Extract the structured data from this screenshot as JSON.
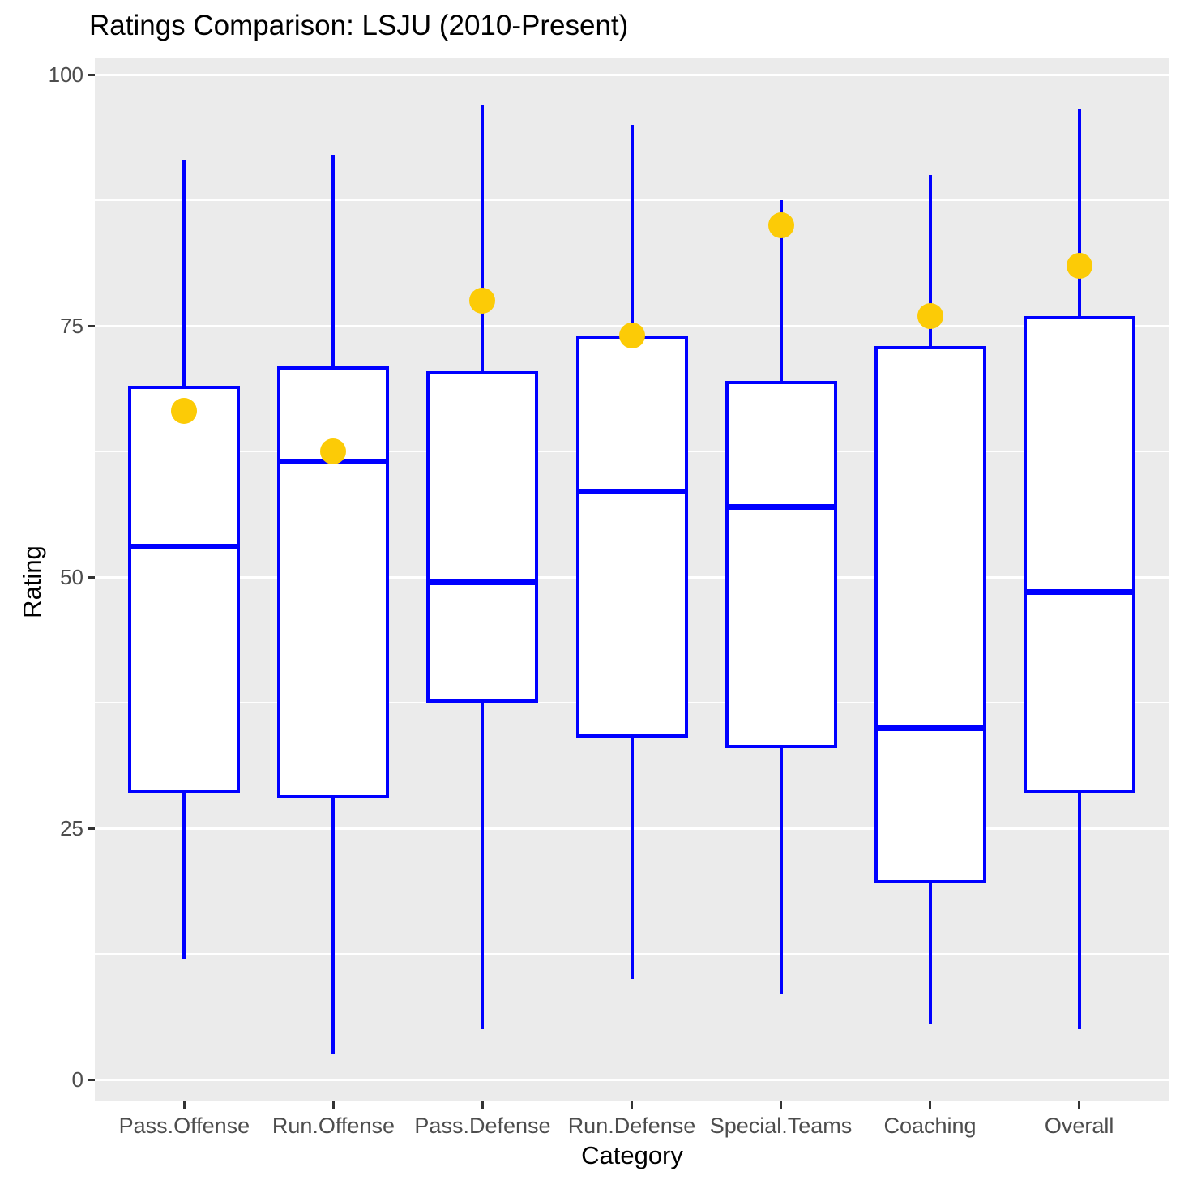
{
  "chart_data": {
    "type": "boxplot",
    "title": "Ratings Comparison: LSJU (2010-Present)",
    "xlabel": "Category",
    "ylabel": "Rating",
    "ylim": [
      0,
      100
    ],
    "yticks": [
      0,
      25,
      50,
      75,
      100
    ],
    "yticks_minor": [
      12.5,
      37.5,
      62.5,
      87.5
    ],
    "grid": "on",
    "legend": "none",
    "categories": [
      "Pass.Offense",
      "Run.Offense",
      "Pass.Defense",
      "Run.Defense",
      "Special.Teams",
      "Coaching",
      "Overall"
    ],
    "boxes": [
      {
        "category": "Pass.Offense",
        "whisker_low": 12,
        "q1": 28.5,
        "median": 53,
        "q3": 69,
        "whisker_high": 91.5,
        "point": 66.5
      },
      {
        "category": "Run.Offense",
        "whisker_low": 2.5,
        "q1": 28,
        "median": 61.5,
        "q3": 71,
        "whisker_high": 92,
        "point": 62.5
      },
      {
        "category": "Pass.Defense",
        "whisker_low": 5,
        "q1": 37.5,
        "median": 49.5,
        "q3": 70.5,
        "whisker_high": 97,
        "point": 77.5
      },
      {
        "category": "Run.Defense",
        "whisker_low": 10,
        "q1": 34,
        "median": 58.5,
        "q3": 74,
        "whisker_high": 95,
        "point": 74
      },
      {
        "category": "Special.Teams",
        "whisker_low": 8.5,
        "q1": 33,
        "median": 57,
        "q3": 69.5,
        "whisker_high": 87.5,
        "point": 85
      },
      {
        "category": "Coaching",
        "whisker_low": 5.5,
        "q1": 19.5,
        "median": 35,
        "q3": 73,
        "whisker_high": 90,
        "point": 76
      },
      {
        "category": "Overall",
        "whisker_low": 5,
        "q1": 28.5,
        "median": 48.5,
        "q3": 76,
        "whisker_high": 96.5,
        "point": 81
      }
    ],
    "colors": {
      "box_stroke": "#0000FF",
      "box_fill": "#FFFFFF",
      "point_fill": "#FCCB06",
      "panel_background": "#EBEBEB",
      "gridline": "#FFFFFF",
      "tick_text": "#4D4D4D",
      "title_text": "#000000"
    }
  }
}
